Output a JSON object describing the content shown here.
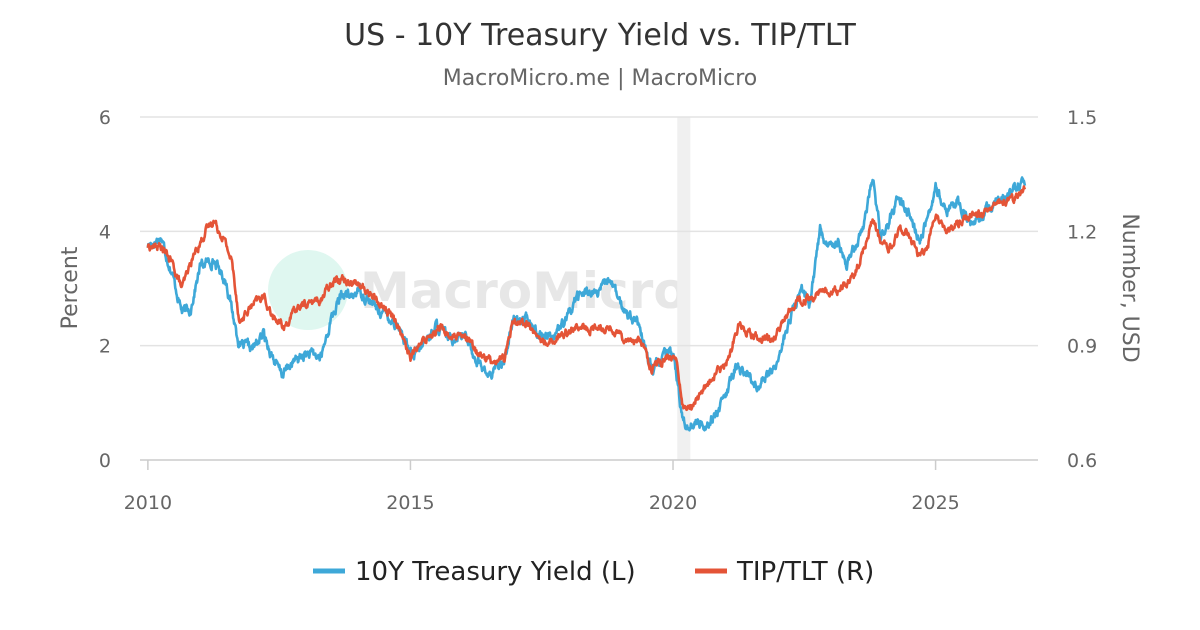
{
  "chart_data": {
    "type": "line",
    "title": "US - 10Y Treasury Yield vs. TIP/TLT",
    "subtitle": "MacroMicro.me | MacroMicro",
    "watermark": "MacroMicro",
    "y_left": {
      "label": "Percent",
      "ticks": [
        "0",
        "2",
        "4",
        "6"
      ],
      "range": [
        0,
        6
      ]
    },
    "y_right": {
      "label": "Number, USD",
      "ticks": [
        "0.6",
        "0.9",
        "1.2",
        "1.5"
      ],
      "range": [
        0.6,
        1.5
      ]
    },
    "x": {
      "ticks": [
        "2010",
        "2015",
        "2020",
        "2025"
      ],
      "range": [
        2009.85,
        2026.95
      ]
    },
    "shaded_region": {
      "from": 2020.08,
      "to": 2020.33
    },
    "grid": true,
    "legend_position": "bottom",
    "series": [
      {
        "name": "10Y Treasury Yield (L)",
        "axis": "left",
        "color": "#3ea8d8",
        "points": [
          [
            2010.0,
            3.75
          ],
          [
            2010.25,
            3.9
          ],
          [
            2010.45,
            3.3
          ],
          [
            2010.65,
            2.6
          ],
          [
            2010.8,
            2.6
          ],
          [
            2011.0,
            3.4
          ],
          [
            2011.25,
            3.5
          ],
          [
            2011.5,
            3.1
          ],
          [
            2011.65,
            2.4
          ],
          [
            2011.75,
            2.0
          ],
          [
            2012.0,
            1.95
          ],
          [
            2012.2,
            2.2
          ],
          [
            2012.45,
            1.65
          ],
          [
            2012.55,
            1.5
          ],
          [
            2012.75,
            1.7
          ],
          [
            2013.0,
            1.85
          ],
          [
            2013.3,
            1.8
          ],
          [
            2013.5,
            2.5
          ],
          [
            2013.7,
            2.9
          ],
          [
            2013.9,
            2.85
          ],
          [
            2014.0,
            3.0
          ],
          [
            2014.3,
            2.7
          ],
          [
            2014.6,
            2.5
          ],
          [
            2014.8,
            2.3
          ],
          [
            2015.05,
            1.75
          ],
          [
            2015.3,
            2.1
          ],
          [
            2015.5,
            2.35
          ],
          [
            2015.75,
            2.1
          ],
          [
            2016.0,
            2.25
          ],
          [
            2016.2,
            1.85
          ],
          [
            2016.5,
            1.45
          ],
          [
            2016.8,
            1.8
          ],
          [
            2016.95,
            2.45
          ],
          [
            2017.2,
            2.45
          ],
          [
            2017.45,
            2.2
          ],
          [
            2017.7,
            2.2
          ],
          [
            2017.95,
            2.4
          ],
          [
            2018.15,
            2.85
          ],
          [
            2018.4,
            2.95
          ],
          [
            2018.6,
            2.9
          ],
          [
            2018.8,
            3.2
          ],
          [
            2019.0,
            2.7
          ],
          [
            2019.3,
            2.45
          ],
          [
            2019.6,
            1.55
          ],
          [
            2019.8,
            1.8
          ],
          [
            2020.0,
            1.9
          ],
          [
            2020.15,
            0.9
          ],
          [
            2020.25,
            0.6
          ],
          [
            2020.45,
            0.65
          ],
          [
            2020.6,
            0.6
          ],
          [
            2020.8,
            0.8
          ],
          [
            2021.0,
            1.1
          ],
          [
            2021.2,
            1.65
          ],
          [
            2021.4,
            1.5
          ],
          [
            2021.6,
            1.3
          ],
          [
            2021.85,
            1.5
          ],
          [
            2022.0,
            1.75
          ],
          [
            2022.2,
            2.4
          ],
          [
            2022.45,
            3.0
          ],
          [
            2022.6,
            2.7
          ],
          [
            2022.8,
            4.05
          ],
          [
            2022.95,
            3.7
          ],
          [
            2023.15,
            3.9
          ],
          [
            2023.3,
            3.4
          ],
          [
            2023.5,
            3.8
          ],
          [
            2023.65,
            4.2
          ],
          [
            2023.8,
            4.95
          ],
          [
            2023.95,
            3.95
          ],
          [
            2024.1,
            4.1
          ],
          [
            2024.3,
            4.65
          ],
          [
            2024.5,
            4.3
          ],
          [
            2024.7,
            3.8
          ],
          [
            2024.85,
            4.25
          ],
          [
            2025.0,
            4.75
          ],
          [
            2025.2,
            4.3
          ],
          [
            2025.4,
            4.55
          ],
          [
            2025.6,
            4.2
          ],
          [
            2025.8,
            4.15
          ],
          [
            2026.0,
            4.4
          ],
          [
            2026.3,
            4.6
          ],
          [
            2026.55,
            4.75
          ],
          [
            2026.7,
            4.8
          ]
        ]
      },
      {
        "name": "TIP/TLT (R)",
        "axis": "right",
        "color": "#e45437",
        "points": [
          [
            2010.0,
            1.16
          ],
          [
            2010.25,
            1.16
          ],
          [
            2010.45,
            1.12
          ],
          [
            2010.65,
            1.05
          ],
          [
            2010.85,
            1.13
          ],
          [
            2011.1,
            1.2
          ],
          [
            2011.25,
            1.23
          ],
          [
            2011.45,
            1.18
          ],
          [
            2011.6,
            1.12
          ],
          [
            2011.75,
            0.96
          ],
          [
            2011.95,
            1.0
          ],
          [
            2012.2,
            1.03
          ],
          [
            2012.4,
            0.97
          ],
          [
            2012.6,
            0.95
          ],
          [
            2012.85,
            1.0
          ],
          [
            2013.0,
            1.01
          ],
          [
            2013.3,
            1.02
          ],
          [
            2013.55,
            1.08
          ],
          [
            2013.9,
            1.07
          ],
          [
            2014.2,
            1.04
          ],
          [
            2014.5,
            1.0
          ],
          [
            2014.75,
            0.96
          ],
          [
            2015.0,
            0.87
          ],
          [
            2015.3,
            0.92
          ],
          [
            2015.55,
            0.95
          ],
          [
            2015.8,
            0.92
          ],
          [
            2016.05,
            0.92
          ],
          [
            2016.3,
            0.88
          ],
          [
            2016.55,
            0.86
          ],
          [
            2016.8,
            0.87
          ],
          [
            2016.95,
            0.97
          ],
          [
            2017.2,
            0.96
          ],
          [
            2017.5,
            0.91
          ],
          [
            2017.8,
            0.92
          ],
          [
            2018.1,
            0.95
          ],
          [
            2018.4,
            0.94
          ],
          [
            2018.7,
            0.95
          ],
          [
            2018.9,
            0.94
          ],
          [
            2019.1,
            0.92
          ],
          [
            2019.4,
            0.91
          ],
          [
            2019.6,
            0.84
          ],
          [
            2019.8,
            0.86
          ],
          [
            2020.05,
            0.87
          ],
          [
            2020.2,
            0.73
          ],
          [
            2020.35,
            0.74
          ],
          [
            2020.6,
            0.79
          ],
          [
            2020.85,
            0.83
          ],
          [
            2021.05,
            0.86
          ],
          [
            2021.25,
            0.96
          ],
          [
            2021.5,
            0.93
          ],
          [
            2021.7,
            0.92
          ],
          [
            2021.95,
            0.92
          ],
          [
            2022.15,
            0.98
          ],
          [
            2022.4,
            1.02
          ],
          [
            2022.6,
            1.02
          ],
          [
            2022.8,
            1.04
          ],
          [
            2023.0,
            1.04
          ],
          [
            2023.2,
            1.05
          ],
          [
            2023.45,
            1.08
          ],
          [
            2023.6,
            1.14
          ],
          [
            2023.8,
            1.23
          ],
          [
            2023.95,
            1.17
          ],
          [
            2024.1,
            1.15
          ],
          [
            2024.3,
            1.2
          ],
          [
            2024.5,
            1.19
          ],
          [
            2024.7,
            1.13
          ],
          [
            2024.85,
            1.16
          ],
          [
            2025.0,
            1.25
          ],
          [
            2025.2,
            1.2
          ],
          [
            2025.45,
            1.22
          ],
          [
            2025.7,
            1.25
          ],
          [
            2025.9,
            1.24
          ],
          [
            2026.1,
            1.27
          ],
          [
            2026.4,
            1.28
          ],
          [
            2026.6,
            1.3
          ],
          [
            2026.7,
            1.31
          ]
        ]
      }
    ]
  }
}
